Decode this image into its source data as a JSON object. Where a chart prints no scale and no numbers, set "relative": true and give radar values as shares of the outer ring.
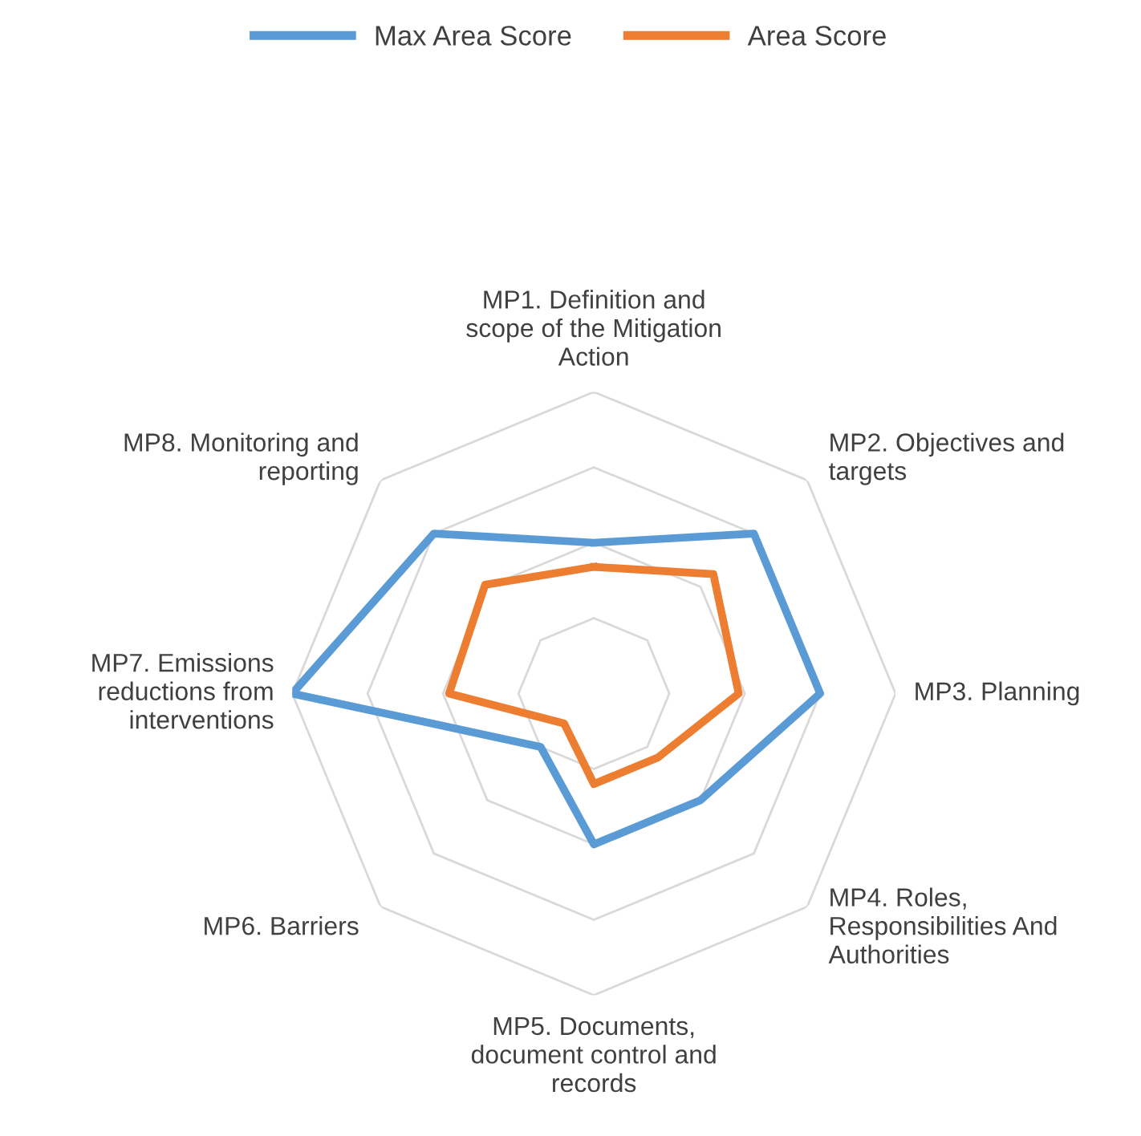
{
  "chart_data": {
    "type": "radar",
    "relative": true,
    "grid": true,
    "legend": "top",
    "categories": [
      "MP1. Definition and\nscope of the Mitigation\nAction",
      "MP2. Objectives and\ntargets",
      "MP3. Planning",
      "MP4. Roles,\nResponsibilities And\nAuthorities",
      "MP5. Documents,\ndocument control and\nrecords",
      "MP6. Barriers",
      "MP7. Emissions\nreductions from\ninterventions",
      "MP8. Monitoring and\nreporting"
    ],
    "series": [
      {
        "name": "Max Area Score",
        "color": "#5b9bd5",
        "values": [
          0.5,
          0.75,
          0.75,
          0.5,
          0.5,
          0.25,
          1.0,
          0.75
        ]
      },
      {
        "name": "Area Score",
        "color": "#ed7d31",
        "values": [
          0.42,
          0.56,
          0.48,
          0.3,
          0.3,
          0.14,
          0.48,
          0.51
        ]
      }
    ]
  }
}
